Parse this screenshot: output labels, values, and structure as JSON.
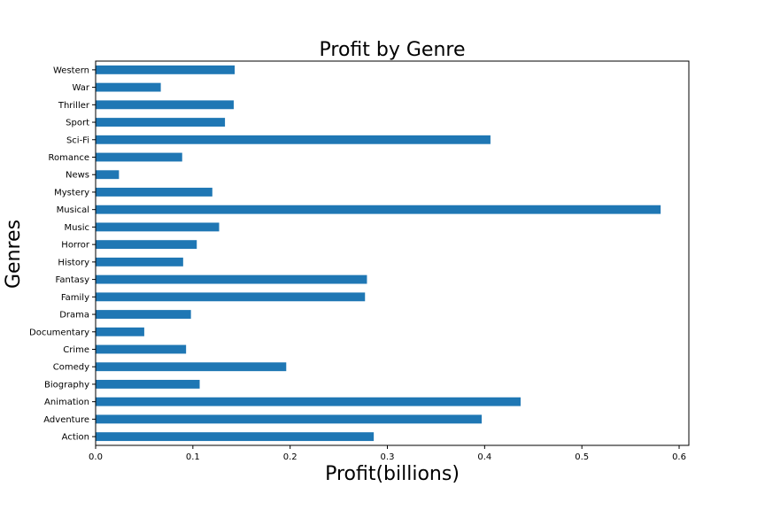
{
  "chart_data": {
    "type": "bar",
    "orientation": "horizontal",
    "title": "Profit by Genre",
    "xlabel": "Profit(billions)",
    "ylabel": "Genres",
    "xlim": [
      0,
      0.61
    ],
    "xticks": [
      0.0,
      0.1,
      0.2,
      0.3,
      0.4,
      0.5,
      0.6
    ],
    "xtick_labels": [
      "0.0",
      "0.1",
      "0.2",
      "0.3",
      "0.4",
      "0.5",
      "0.6"
    ],
    "grid": false,
    "legend": "none",
    "bar_color": "#1f77b4",
    "categories": [
      "Action",
      "Adventure",
      "Animation",
      "Biography",
      "Comedy",
      "Crime",
      "Documentary",
      "Drama",
      "Family",
      "Fantasy",
      "History",
      "Horror",
      "Music",
      "Musical",
      "Mystery",
      "News",
      "Romance",
      "Sci-Fi",
      "Sport",
      "Thriller",
      "War",
      "Western"
    ],
    "values": [
      0.286,
      0.397,
      0.437,
      0.107,
      0.196,
      0.093,
      0.05,
      0.098,
      0.277,
      0.279,
      0.09,
      0.104,
      0.127,
      0.581,
      0.12,
      0.024,
      0.089,
      0.406,
      0.133,
      0.142,
      0.067,
      0.143
    ]
  }
}
